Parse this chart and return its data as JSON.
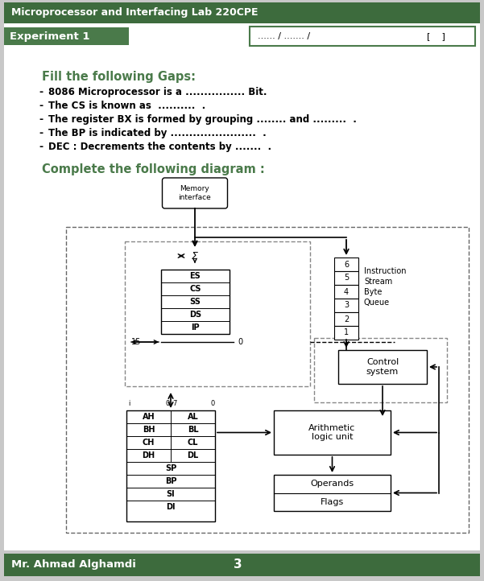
{
  "title": "Microprocessor and Interfacing Lab 220CPE",
  "experiment": "Experiment 1",
  "date_box": "...... / ....... /              [    ]",
  "footer_name": "Mr. Ahmad Alghamdi",
  "footer_page": "3",
  "header_bg": "#3d6b3d",
  "experiment_bg": "#4a7a4a",
  "footer_bg": "#3d6b3d",
  "section1_title": "Fill the following Gaps:",
  "bullets": [
    "8086 Microprocessor is a ................ Bit.",
    "The CS is known as  ..........  .",
    "The register BX is formed by grouping ........ and .........  .",
    "The BP is indicated by .......................  .",
    "DEC : Decrements the contents by .......  ."
  ],
  "section2_title": "Complete the following diagram :",
  "bg_outer": "#c8c8c8",
  "bg_white": "#ffffff"
}
